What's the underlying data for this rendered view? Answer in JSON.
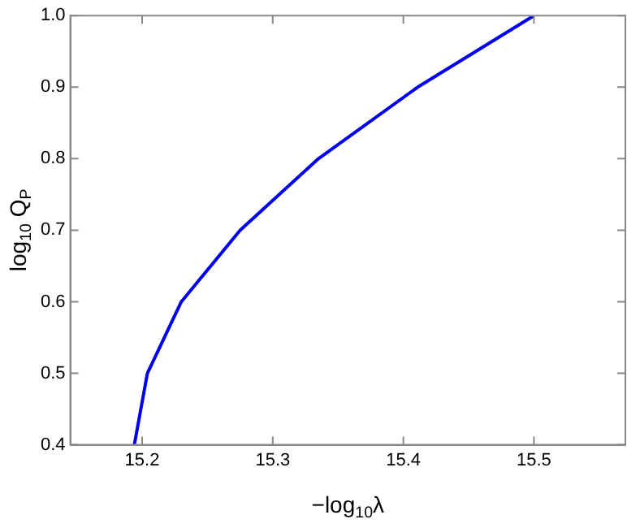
{
  "chart_data": {
    "type": "line",
    "xlabel": "−log$_{10}$λ",
    "ylabel": "log$_{10}$ Q$_{P}$",
    "x": [
      15.194,
      15.204,
      15.23,
      15.275,
      15.335,
      15.411,
      15.5
    ],
    "series": [
      {
        "color": "#0000ee",
        "values": [
          0.4,
          0.5,
          0.6,
          0.7,
          0.8,
          0.9,
          1.0
        ]
      }
    ],
    "xlim": [
      15.145,
      15.57
    ],
    "xticks": [
      15.2,
      15.3,
      15.4,
      15.5
    ],
    "ylim": [
      0.4,
      1.0
    ],
    "yticks": [
      0.4,
      0.5,
      0.6,
      0.7,
      0.8,
      0.9,
      {
        "value": 1,
        "label": "1.0"
      }
    ],
    "grid": false,
    "legend": false,
    "marker": "none",
    "line_style": "solid"
  }
}
